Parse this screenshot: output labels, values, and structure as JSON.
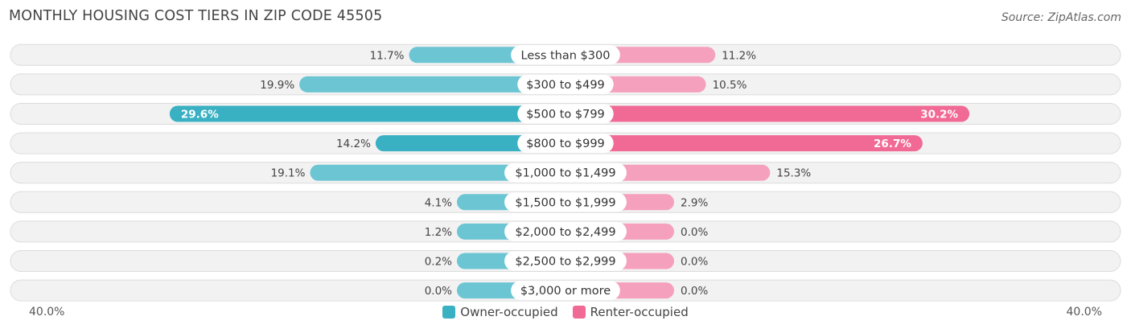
{
  "header": {
    "title": "MONTHLY HOUSING COST TIERS IN ZIP CODE 45505",
    "source": "Source: ZipAtlas.com"
  },
  "axis": {
    "left_label": "40.0%",
    "right_label": "40.0%"
  },
  "legend": [
    {
      "label": "Owner-occupied",
      "color": "#3ab0c3"
    },
    {
      "label": "Renter-occupied",
      "color": "#f06a95"
    }
  ],
  "chart_data": {
    "type": "bar",
    "orientation": "diverging-horizontal",
    "title": "MONTHLY HOUSING COST TIERS IN ZIP CODE 45505",
    "xlim": [
      -40,
      40
    ],
    "categories": [
      "Less than $300",
      "$300 to $499",
      "$500 to $799",
      "$800 to $999",
      "$1,000 to $1,499",
      "$1,500 to $1,999",
      "$2,000 to $2,499",
      "$2,500 to $2,999",
      "$3,000 or more"
    ],
    "series": [
      {
        "name": "Owner-occupied",
        "values": [
          11.7,
          19.9,
          29.6,
          14.2,
          19.1,
          4.1,
          1.2,
          0.2,
          0.0
        ],
        "labels": [
          "11.7%",
          "19.9%",
          "29.6%",
          "14.2%",
          "19.1%",
          "4.1%",
          "1.2%",
          "0.2%",
          "0.0%"
        ]
      },
      {
        "name": "Renter-occupied",
        "values": [
          11.2,
          10.5,
          30.2,
          26.7,
          15.3,
          2.9,
          0.0,
          0.0,
          0.0
        ],
        "labels": [
          "11.2%",
          "10.5%",
          "30.2%",
          "26.7%",
          "15.3%",
          "2.9%",
          "0.0%",
          "0.0%",
          "0.0%"
        ]
      }
    ]
  }
}
